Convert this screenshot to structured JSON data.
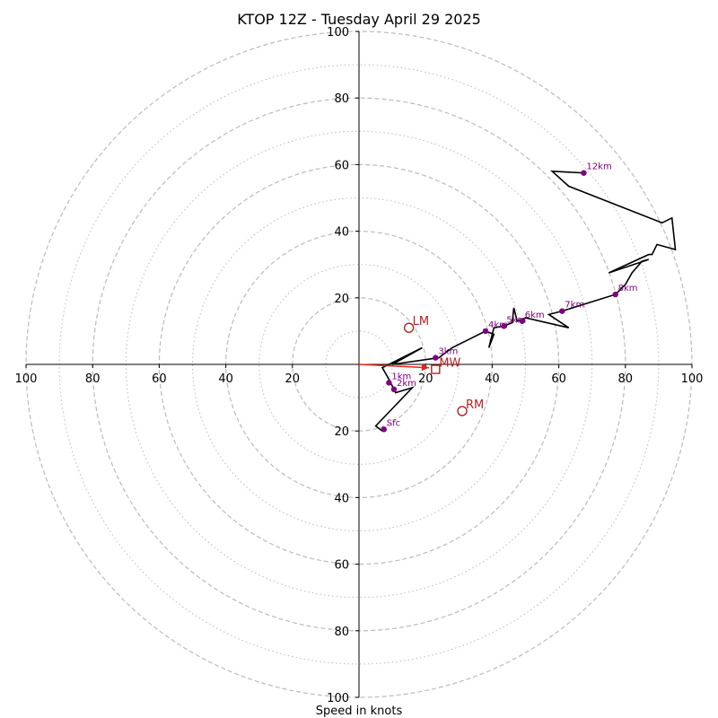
{
  "chart_data": {
    "type": "scatter",
    "title": "KTOP 12Z - Tuesday April 29 2025",
    "xlabel": "Speed in knots",
    "ylabel": "",
    "xlim": [
      -100,
      100
    ],
    "ylim": [
      -100,
      100
    ],
    "rings_major": [
      20,
      40,
      60,
      80,
      100
    ],
    "rings_minor": [
      10,
      30,
      50,
      70,
      90
    ],
    "tick_labels": {
      "left": [
        "100",
        "80",
        "60",
        "40",
        "20"
      ],
      "right": [
        "20",
        "40",
        "60",
        "80",
        "100"
      ],
      "top": [
        "100",
        "80",
        "60",
        "40",
        "20"
      ],
      "bottom": [
        "20",
        "40",
        "60",
        "80",
        "100"
      ]
    },
    "hodograph_trace": [
      [
        7,
        -20
      ],
      [
        5,
        -18.5
      ],
      [
        16,
        -7
      ],
      [
        11,
        -8.5
      ],
      [
        9,
        -4.5
      ],
      [
        7,
        -1
      ],
      [
        19,
        5
      ],
      [
        10,
        0
      ],
      [
        24,
        2
      ],
      [
        28,
        5
      ],
      [
        33,
        7.5
      ],
      [
        38,
        10
      ],
      [
        40.5,
        9
      ],
      [
        39,
        5
      ],
      [
        40.5,
        11
      ],
      [
        43.5,
        11.5
      ],
      [
        46,
        12.5
      ],
      [
        46.5,
        17
      ],
      [
        47.5,
        13
      ],
      [
        50,
        14
      ],
      [
        63,
        11
      ],
      [
        57,
        15
      ],
      [
        61,
        16
      ],
      [
        77,
        21
      ],
      [
        80,
        24
      ],
      [
        82,
        27.5
      ],
      [
        85,
        31
      ],
      [
        87,
        31.5
      ],
      [
        75,
        27.5
      ],
      [
        87,
        33
      ],
      [
        88,
        33
      ],
      [
        89.5,
        36
      ],
      [
        95,
        34.5
      ],
      [
        94,
        44
      ],
      [
        91,
        42.5
      ],
      [
        63,
        53.5
      ],
      [
        58,
        58
      ],
      [
        67.5,
        57.5
      ]
    ],
    "series": [
      {
        "points": [
          {
            "x": 7.5,
            "y": -19.5,
            "label": "Sfc"
          },
          {
            "x": 9,
            "y": -5.5,
            "label": "1km"
          },
          {
            "x": 10.5,
            "y": -7.5,
            "label": "2km"
          },
          {
            "x": 23,
            "y": 2,
            "label": "3km"
          },
          {
            "x": 38,
            "y": 10,
            "label": "4km"
          },
          {
            "x": 43.5,
            "y": 11.5,
            "label": "5km"
          },
          {
            "x": 49,
            "y": 13,
            "label": "6km"
          },
          {
            "x": 61,
            "y": 16,
            "label": "7km"
          },
          {
            "x": 77,
            "y": 21,
            "label": "8km"
          },
          {
            "x": 67.5,
            "y": 57.5,
            "label": "12km"
          }
        ]
      }
    ],
    "storm_motion_line": [
      [
        0,
        0
      ],
      [
        21,
        -1
      ]
    ],
    "markers": [
      {
        "label": "LM",
        "x": 15,
        "y": 11,
        "shape": "circle"
      },
      {
        "label": "RM",
        "x": 31,
        "y": -14,
        "shape": "circle"
      },
      {
        "label": "MW",
        "x": 23,
        "y": -1.5,
        "shape": "square"
      }
    ],
    "colors": {
      "trace": "#000000",
      "points": "#800080",
      "markers": "#b22222",
      "storm_motion": "#e8231c",
      "grid": "#bbbbbb"
    },
    "grid": true
  }
}
